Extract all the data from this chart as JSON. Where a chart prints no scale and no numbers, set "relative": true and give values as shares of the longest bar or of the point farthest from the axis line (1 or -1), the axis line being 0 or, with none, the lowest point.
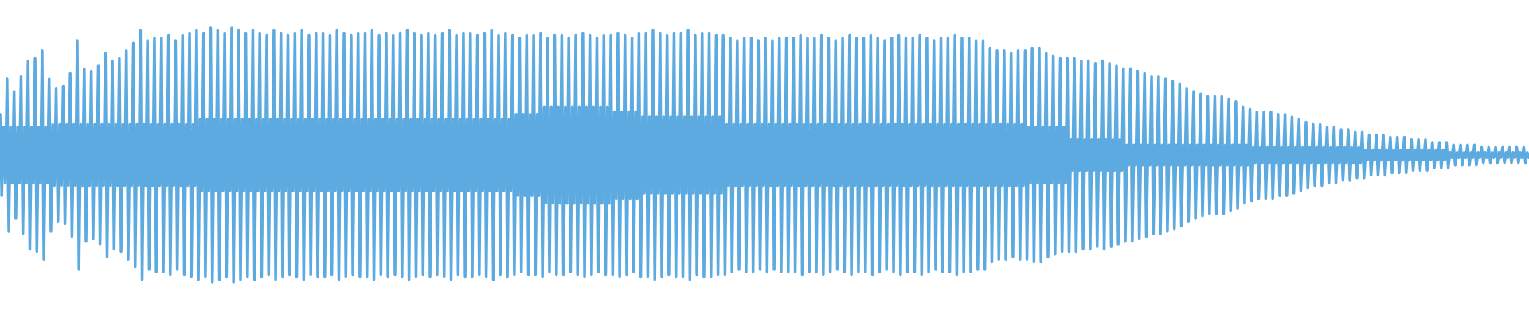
{
  "chart_data": {
    "type": "line",
    "relative": true,
    "color": "#5daae0",
    "categories": [
      null,
      null,
      null,
      null,
      null,
      null,
      null,
      null,
      null,
      null,
      null,
      null,
      null,
      null,
      null,
      null,
      null,
      null,
      null,
      null,
      null,
      null,
      null,
      null,
      null,
      null,
      null,
      null,
      null,
      null,
      null,
      null,
      null,
      null,
      null,
      null,
      null,
      null,
      null,
      null,
      null,
      null,
      null,
      null,
      null,
      null,
      null,
      null,
      null,
      null,
      null,
      null,
      null,
      null,
      null,
      null,
      null,
      null,
      null,
      null,
      null,
      null,
      null,
      null,
      null,
      null,
      null,
      null,
      null,
      null,
      null,
      null,
      null,
      null,
      null,
      null,
      null,
      null,
      null,
      null,
      null,
      null,
      null,
      null,
      null,
      null,
      null,
      null,
      null,
      null,
      null,
      null,
      null,
      null,
      null,
      null,
      null,
      null,
      null,
      null,
      null,
      null,
      null,
      null,
      null,
      null,
      null,
      null,
      null,
      null,
      null,
      null,
      null,
      null,
      null,
      null,
      null,
      null,
      null,
      null,
      null,
      null,
      null,
      null,
      null,
      null,
      null,
      null,
      null,
      null,
      null,
      null,
      null,
      null,
      null,
      null,
      null,
      null,
      null,
      null,
      null,
      null,
      null,
      null,
      null,
      null,
      null,
      null,
      null,
      null,
      null,
      null,
      null,
      null,
      null,
      null,
      null,
      null,
      null,
      null,
      null,
      null,
      null,
      null,
      null,
      null,
      null,
      null,
      null,
      null,
      null,
      null,
      null,
      null,
      null,
      null,
      null,
      null,
      null,
      null,
      null,
      null,
      null,
      null,
      null,
      null,
      null,
      null,
      null,
      null,
      null,
      null,
      null,
      null,
      null,
      null,
      null,
      null,
      null,
      null,
      null,
      null,
      null,
      null,
      null,
      null,
      null,
      null,
      null,
      null,
      null,
      null,
      null,
      null,
      null,
      null,
      null,
      null,
      null,
      null,
      null,
      null,
      null,
      null,
      null,
      null,
      null,
      null,
      null,
      null,
      null,
      null,
      null,
      null,
      null,
      null,
      null,
      null,
      null,
      null,
      null,
      null,
      null,
      null,
      null,
      null,
      null,
      null,
      null,
      null,
      null,
      null,
      null,
      null,
      null,
      null,
      null,
      null,
      null,
      null,
      null,
      null,
      null,
      null,
      null,
      null,
      null,
      null,
      null,
      null,
      null,
      null,
      null,
      null,
      null,
      null,
      null,
      null,
      null,
      null,
      null,
      null,
      null,
      null,
      null,
      null,
      null,
      null,
      null,
      null,
      null,
      null,
      null,
      null,
      null,
      null,
      null,
      null,
      null,
      null,
      null,
      null,
      null,
      null,
      null,
      null,
      null,
      null,
      null,
      null,
      null,
      null,
      null,
      null,
      null,
      null,
      null,
      null,
      null,
      null,
      null,
      null,
      null,
      null,
      null,
      null,
      null,
      null,
      null,
      null,
      null,
      null,
      null,
      null,
      null,
      null,
      null,
      null,
      null,
      null,
      null,
      null,
      null,
      null,
      null,
      null,
      null,
      null,
      null,
      null,
      null,
      null,
      null,
      null,
      null,
      null,
      null,
      null,
      null,
      null,
      null,
      null,
      null,
      null,
      null,
      null,
      null,
      null,
      null,
      null,
      null,
      null,
      null,
      null,
      null,
      null,
      null,
      null,
      null,
      null,
      null,
      null,
      null,
      null,
      null,
      null,
      null,
      null,
      null,
      null,
      null,
      null,
      null,
      null,
      null,
      null,
      null,
      null,
      null,
      null,
      null,
      null,
      null,
      null,
      null,
      null,
      null,
      null,
      null,
      null,
      null,
      null,
      null,
      null,
      null,
      null,
      null,
      null,
      null,
      null,
      null,
      null,
      null,
      null,
      null,
      null,
      null,
      null,
      null,
      null,
      null,
      null,
      null,
      null,
      null,
      null,
      null,
      null,
      null,
      null,
      null,
      null,
      null,
      null,
      null,
      null,
      null,
      null,
      null,
      null,
      null,
      null,
      null,
      null,
      null,
      null,
      null,
      null,
      null,
      null,
      null,
      null,
      null,
      null,
      null,
      null,
      null,
      null,
      null,
      null,
      null,
      null,
      null,
      null,
      null,
      null,
      null,
      null,
      null,
      null,
      null,
      null,
      null,
      null,
      null,
      null,
      null,
      null,
      null,
      null,
      null,
      null,
      null,
      null,
      null,
      null,
      null,
      null,
      null,
      null,
      null,
      null,
      null,
      null,
      null,
      null,
      null,
      null,
      null,
      null,
      null,
      null,
      null,
      null,
      null,
      null,
      null,
      null,
      null,
      null,
      null,
      null,
      null,
      null,
      null,
      null,
      null,
      null,
      null,
      null,
      null,
      null,
      null,
      null,
      null,
      null,
      null,
      null,
      null,
      null,
      null,
      null,
      null,
      null,
      null,
      null,
      null,
      null,
      null,
      null,
      null,
      null,
      null,
      null,
      null,
      null,
      null,
      null,
      null,
      null,
      null,
      null,
      null,
      null,
      null,
      null,
      null,
      null,
      null,
      null,
      null,
      null,
      null,
      null,
      null,
      null,
      null,
      null,
      null,
      null,
      null,
      null,
      null,
      null,
      null,
      null,
      null,
      null,
      null,
      null,
      null,
      null,
      null,
      null,
      null,
      null,
      null,
      null,
      null,
      null,
      null,
      null,
      null,
      null,
      null,
      null,
      null,
      null,
      null,
      null,
      null,
      null,
      null,
      null,
      null,
      null,
      null,
      null,
      null,
      null,
      null,
      null,
      null,
      null,
      null,
      null,
      null,
      null,
      null,
      null,
      null,
      null,
      null,
      null,
      null,
      null,
      null,
      null,
      null,
      null,
      null,
      null,
      null,
      null,
      null,
      null,
      null,
      null,
      null,
      null,
      null,
      null,
      null,
      null,
      null,
      null,
      null,
      null,
      null,
      null,
      null,
      null,
      null,
      null,
      null,
      null,
      null,
      null,
      null,
      null,
      null,
      null,
      null,
      null,
      null,
      null,
      null,
      null,
      null,
      null,
      null,
      null,
      null,
      null,
      null,
      null,
      null,
      null,
      null,
      null,
      null,
      null,
      null,
      null,
      null,
      null,
      null,
      null,
      null,
      null,
      null,
      null,
      null,
      null,
      null,
      null,
      null,
      null,
      null,
      null,
      null,
      null,
      null,
      null,
      null,
      null,
      null,
      null,
      null,
      null,
      null,
      null,
      null,
      null,
      null,
      null,
      null,
      null,
      null,
      null,
      null,
      null,
      null,
      null,
      null,
      null,
      null,
      null,
      null,
      null,
      null,
      null,
      null,
      null,
      null,
      null,
      null,
      null,
      null,
      null,
      null,
      null,
      null,
      null,
      null,
      null,
      null,
      null,
      null,
      null,
      null,
      null,
      null,
      null,
      null,
      null,
      null,
      null,
      null,
      null,
      null,
      null,
      null,
      null,
      null,
      null,
      null,
      null,
      null,
      null,
      null,
      null,
      null,
      null,
      null,
      null,
      null,
      null,
      null,
      null,
      null,
      null,
      null,
      null,
      null,
      null,
      null,
      null,
      null,
      null,
      null,
      null,
      null,
      null,
      null,
      null,
      null,
      null,
      null,
      null,
      null,
      null,
      null,
      null,
      null,
      null,
      null,
      null,
      null,
      null,
      null,
      null,
      null,
      null,
      null,
      null,
      null,
      null,
      null,
      null,
      null,
      null,
      null,
      null,
      null,
      null,
      null,
      null,
      null,
      null,
      null,
      null,
      null,
      null,
      null,
      null,
      null,
      null,
      null,
      null,
      null,
      null,
      null,
      null,
      null,
      null,
      null,
      null,
      null,
      null,
      null,
      null,
      null,
      null,
      null,
      null,
      null,
      null,
      null,
      null,
      null,
      null
    ],
    "values": [
      0.66,
      0.34,
      0.61,
      0.39,
      0.8,
      0.2,
      0.61,
      0.39,
      0.75,
      0.25,
      0.61,
      0.39,
      0.81,
      0.19,
      0.61,
      0.39,
      0.87,
      0.13,
      0.61,
      0.39,
      0.88,
      0.12,
      0.61,
      0.39,
      0.91,
      0.09,
      0.61,
      0.39,
      0.8,
      0.2,
      0.62,
      0.38,
      0.76,
      0.24,
      0.62,
      0.38,
      0.77,
      0.23,
      0.62,
      0.38,
      0.82,
      0.18,
      0.62,
      0.38,
      0.95,
      0.05,
      0.62,
      0.38,
      0.84,
      0.16,
      0.62,
      0.38,
      0.83,
      0.17,
      0.62,
      0.38,
      0.85,
      0.15,
      0.62,
      0.38,
      0.9,
      0.1,
      0.62,
      0.38,
      0.87,
      0.13,
      0.62,
      0.38,
      0.88,
      0.12,
      0.62,
      0.38,
      0.91,
      0.09,
      0.62,
      0.38,
      0.94,
      0.06,
      0.62,
      0.38,
      0.99,
      0.01,
      0.62,
      0.38,
      0.95,
      0.05,
      0.62,
      0.38,
      0.96,
      0.04,
      0.62,
      0.38,
      0.96,
      0.04,
      0.62,
      0.38,
      0.97,
      0.03,
      0.62,
      0.38,
      0.95,
      0.05,
      0.62,
      0.38,
      0.97,
      0.03,
      0.62,
      0.38,
      0.98,
      0.02,
      0.62,
      0.38,
      0.99,
      0.01,
      0.64,
      0.36,
      0.98,
      0.02,
      0.64,
      0.36,
      1,
      0,
      0.64,
      0.36,
      0.99,
      0.01,
      0.64,
      0.36,
      0.98,
      0.02,
      0.64,
      0.36,
      1,
      0,
      0.64,
      0.36,
      0.99,
      0.01,
      0.64,
      0.36,
      0.98,
      0.02,
      0.64,
      0.36,
      0.99,
      0.01,
      0.64,
      0.36,
      0.98,
      0.02,
      0.64,
      0.36,
      0.97,
      0.03,
      0.64,
      0.36,
      0.99,
      0.01,
      0.64,
      0.36,
      0.98,
      0.02,
      0.64,
      0.36,
      0.97,
      0.03,
      0.64,
      0.36,
      0.98,
      0.02,
      0.64,
      0.36,
      0.99,
      0.01,
      0.64,
      0.36,
      0.97,
      0.03,
      0.64,
      0.36,
      0.98,
      0.02,
      0.64,
      0.36,
      0.98,
      0.02,
      0.64,
      0.36,
      0.97,
      0.03,
      0.64,
      0.36,
      0.99,
      0.01,
      0.64,
      0.36,
      0.98,
      0.02,
      0.64,
      0.36,
      0.97,
      0.03,
      0.64,
      0.36,
      0.98,
      0.02,
      0.64,
      0.36,
      0.98,
      0.02,
      0.64,
      0.36,
      0.99,
      0.01,
      0.64,
      0.36,
      0.97,
      0.03,
      0.64,
      0.36,
      0.98,
      0.02,
      0.64,
      0.36,
      0.97,
      0.03,
      0.64,
      0.36,
      0.98,
      0.02,
      0.64,
      0.36,
      0.99,
      0.01,
      0.64,
      0.36,
      0.98,
      0.02,
      0.64,
      0.36,
      0.97,
      0.03,
      0.64,
      0.36,
      0.98,
      0.02,
      0.64,
      0.36,
      0.97,
      0.03,
      0.64,
      0.36,
      0.98,
      0.02,
      0.64,
      0.36,
      0.99,
      0.01,
      0.64,
      0.36,
      0.97,
      0.03,
      0.64,
      0.36,
      0.98,
      0.02,
      0.64,
      0.36,
      0.98,
      0.02,
      0.64,
      0.36,
      0.97,
      0.03,
      0.64,
      0.36,
      0.98,
      0.02,
      0.64,
      0.36,
      0.99,
      0.01,
      0.64,
      0.36,
      0.97,
      0.03,
      0.64,
      0.36,
      0.98,
      0.02,
      0.64,
      0.36,
      0.97,
      0.03,
      0.66,
      0.34,
      0.96,
      0.04,
      0.66,
      0.34,
      0.97,
      0.03,
      0.66,
      0.34,
      0.97,
      0.03,
      0.66,
      0.34,
      0.98,
      0.02,
      0.69,
      0.31,
      0.96,
      0.04,
      0.69,
      0.31,
      0.97,
      0.03,
      0.69,
      0.31,
      0.97,
      0.03,
      0.69,
      0.31,
      0.96,
      0.04,
      0.69,
      0.31,
      0.97,
      0.03,
      0.69,
      0.31,
      0.98,
      0.02,
      0.69,
      0.31,
      0.97,
      0.03,
      0.69,
      0.31,
      0.96,
      0.04,
      0.69,
      0.31,
      0.97,
      0.03,
      0.69,
      0.31,
      0.97,
      0.03,
      0.67,
      0.33,
      0.98,
      0.02,
      0.67,
      0.33,
      0.97,
      0.03,
      0.67,
      0.33,
      0.96,
      0.04,
      0.67,
      0.33,
      0.98,
      0.02,
      0.65,
      0.35,
      0.98,
      0.02,
      0.65,
      0.35,
      0.99,
      0.01,
      0.65,
      0.35,
      0.98,
      0.02,
      0.65,
      0.35,
      0.97,
      0.03,
      0.65,
      0.35,
      0.98,
      0.02,
      0.65,
      0.35,
      0.98,
      0.02,
      0.65,
      0.35,
      0.99,
      0.01,
      0.65,
      0.35,
      0.97,
      0.03,
      0.65,
      0.35,
      0.98,
      0.02,
      0.65,
      0.35,
      0.98,
      0.02,
      0.65,
      0.35,
      0.97,
      0.03,
      0.65,
      0.35,
      0.97,
      0.03,
      0.62,
      0.38,
      0.96,
      0.04,
      0.62,
      0.38,
      0.95,
      0.05,
      0.62,
      0.38,
      0.96,
      0.04,
      0.62,
      0.38,
      0.96,
      0.04,
      0.62,
      0.38,
      0.95,
      0.05,
      0.62,
      0.38,
      0.96,
      0.04,
      0.62,
      0.38,
      0.95,
      0.05,
      0.62,
      0.38,
      0.96,
      0.04,
      0.62,
      0.38,
      0.96,
      0.04,
      0.62,
      0.38,
      0.96,
      0.04,
      0.62,
      0.38,
      0.97,
      0.03,
      0.62,
      0.38,
      0.96,
      0.04,
      0.62,
      0.38,
      0.96,
      0.04,
      0.62,
      0.38,
      0.97,
      0.03,
      0.62,
      0.38,
      0.96,
      0.04,
      0.62,
      0.38,
      0.95,
      0.05,
      0.62,
      0.38,
      0.96,
      0.04,
      0.62,
      0.38,
      0.97,
      0.03,
      0.62,
      0.38,
      0.96,
      0.04,
      0.62,
      0.38,
      0.96,
      0.04,
      0.62,
      0.38,
      0.97,
      0.03,
      0.62,
      0.38,
      0.96,
      0.04,
      0.62,
      0.38,
      0.95,
      0.05,
      0.62,
      0.38,
      0.96,
      0.04,
      0.62,
      0.38,
      0.97,
      0.03,
      0.62,
      0.38,
      0.96,
      0.04,
      0.62,
      0.38,
      0.96,
      0.04,
      0.62,
      0.38,
      0.97,
      0.03,
      0.62,
      0.38,
      0.96,
      0.04,
      0.62,
      0.38,
      0.95,
      0.05,
      0.62,
      0.38,
      0.96,
      0.04,
      0.62,
      0.38,
      0.96,
      0.04,
      0.62,
      0.38,
      0.97,
      0.03,
      0.62,
      0.38,
      0.96,
      0.04,
      0.62,
      0.38,
      0.96,
      0.04,
      0.62,
      0.38,
      0.95,
      0.05,
      0.62,
      0.38,
      0.95,
      0.05,
      0.62,
      0.38,
      0.92,
      0.08,
      0.62,
      0.38,
      0.91,
      0.09,
      0.62,
      0.38,
      0.91,
      0.09,
      0.62,
      0.38,
      0.9,
      0.1,
      0.62,
      0.38,
      0.91,
      0.09,
      0.62,
      0.38,
      0.91,
      0.09,
      0.61,
      0.39,
      0.92,
      0.08,
      0.61,
      0.39,
      0.92,
      0.08,
      0.61,
      0.39,
      0.9,
      0.1,
      0.61,
      0.39,
      0.89,
      0.11,
      0.61,
      0.39,
      0.88,
      0.12,
      0.61,
      0.39,
      0.88,
      0.12,
      0.56,
      0.44,
      0.88,
      0.12,
      0.56,
      0.44,
      0.87,
      0.13,
      0.56,
      0.44,
      0.87,
      0.13,
      0.56,
      0.44,
      0.86,
      0.14,
      0.56,
      0.44,
      0.87,
      0.13,
      0.56,
      0.44,
      0.86,
      0.14,
      0.56,
      0.44,
      0.85,
      0.15,
      0.56,
      0.44,
      0.84,
      0.16,
      0.54,
      0.46,
      0.84,
      0.16,
      0.54,
      0.46,
      0.83,
      0.17,
      0.54,
      0.46,
      0.82,
      0.18,
      0.54,
      0.46,
      0.81,
      0.19,
      0.54,
      0.46,
      0.81,
      0.19,
      0.54,
      0.46,
      0.8,
      0.2,
      0.54,
      0.46,
      0.79,
      0.21,
      0.54,
      0.46,
      0.78,
      0.22,
      0.54,
      0.46,
      0.76,
      0.24,
      0.54,
      0.46,
      0.75,
      0.25,
      0.54,
      0.46,
      0.74,
      0.26,
      0.54,
      0.46,
      0.73,
      0.27,
      0.54,
      0.46,
      0.73,
      0.27,
      0.54,
      0.46,
      0.73,
      0.27,
      0.54,
      0.46,
      0.72,
      0.28,
      0.54,
      0.46,
      0.71,
      0.29,
      0.54,
      0.46,
      0.69,
      0.31,
      0.54,
      0.46,
      0.68,
      0.32,
      0.53,
      0.47,
      0.67,
      0.33,
      0.53,
      0.47,
      0.67,
      0.33,
      0.53,
      0.47,
      0.67,
      0.33,
      0.53,
      0.47,
      0.66,
      0.34,
      0.53,
      0.47,
      0.66,
      0.34,
      0.53,
      0.47,
      0.65,
      0.35,
      0.53,
      0.47,
      0.64,
      0.36,
      0.53,
      0.47,
      0.63,
      0.37,
      0.53,
      0.47,
      0.62,
      0.38,
      0.53,
      0.47,
      0.62,
      0.38,
      0.53,
      0.47,
      0.61,
      0.39,
      0.53,
      0.47,
      0.61,
      0.39,
      0.53,
      0.47,
      0.6,
      0.4,
      0.53,
      0.47,
      0.6,
      0.4,
      0.53,
      0.47,
      0.59,
      0.41,
      0.53,
      0.47,
      0.59,
      0.41,
      0.52,
      0.48,
      0.58,
      0.42,
      0.52,
      0.48,
      0.58,
      0.42,
      0.52,
      0.48,
      0.58,
      0.42,
      0.52,
      0.48,
      0.57,
      0.43,
      0.52,
      0.48,
      0.57,
      0.43,
      0.52,
      0.48,
      0.57,
      0.43,
      0.52,
      0.48,
      0.56,
      0.44,
      0.52,
      0.48,
      0.56,
      0.44,
      0.52,
      0.48,
      0.56,
      0.44,
      0.52,
      0.48,
      0.55,
      0.45,
      0.52,
      0.48,
      0.55,
      0.45,
      0.52,
      0.48,
      0.55,
      0.45,
      0.51,
      0.49,
      0.54,
      0.46,
      0.51,
      0.49,
      0.54,
      0.46,
      0.51,
      0.49,
      0.54,
      0.46,
      0.51,
      0.49,
      0.54,
      0.46,
      0.51,
      0.49,
      0.53,
      0.47,
      0.51,
      0.49,
      0.53,
      0.47,
      0.51,
      0.49,
      0.53,
      0.47,
      0.51,
      0.49,
      0.53,
      0.47,
      0.51,
      0.49,
      0.53,
      0.47,
      0.51,
      0.49,
      0.53,
      0.47,
      0.51,
      0.49,
      0.53,
      0.47,
      0.51,
      0.49
    ]
  }
}
